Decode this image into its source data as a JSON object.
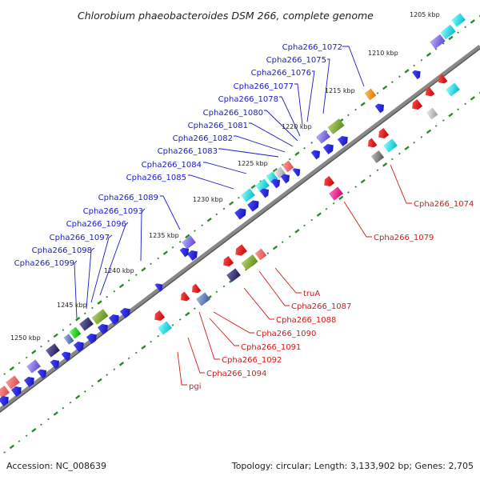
{
  "title": "Chlorobium phaeobacteroides DSM 266, complete genome",
  "footer": {
    "accession": "Accession: NC_008639",
    "summary": "Topology: circular; Length: 3,133,902 bp; Genes: 2,705"
  },
  "ticks": [
    "1205 kbp",
    "1210 kbp",
    "1215 kbp",
    "1220 kbp",
    "1225 kbp",
    "1230 kbp",
    "1235 kbp",
    "1240 kbp",
    "1245 kbp",
    "1250 kbp"
  ],
  "blue_labels": [
    "Cpha266_1072",
    "Cpha266_1075",
    "Cpha266_1076",
    "Cpha266_1077",
    "Cpha266_1078",
    "Cpha266_1080",
    "Cpha266_1081",
    "Cpha266_1082",
    "Cpha266_1083",
    "Cpha266_1084",
    "Cpha266_1085",
    "Cpha266_1089",
    "Cpha266_1093",
    "Cpha266_1096",
    "Cpha266_1097",
    "Cpha266_1098",
    "Cpha266_1099"
  ],
  "red_labels": [
    "Cpha266_1074",
    "Cpha266_1079",
    "truA",
    "Cpha266_1087",
    "Cpha266_1088",
    "Cpha266_1090",
    "Cpha266_1091",
    "Cpha266_1092",
    "Cpha266_1094",
    "pgi"
  ],
  "colors": {
    "forward": "#1212e0",
    "reverse": "#e81010",
    "backbone": "#7a7a7a",
    "tick": "#2a8a2a",
    "label_blue": "#1a1acc",
    "label_red": "#d41a1a"
  }
}
